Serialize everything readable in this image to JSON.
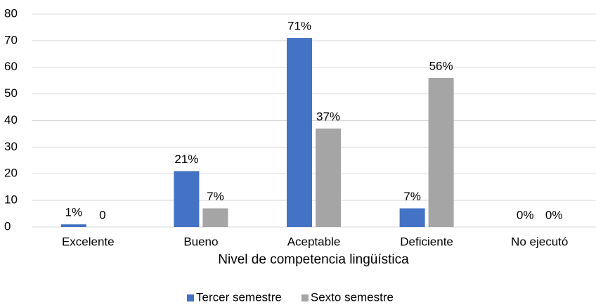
{
  "chart_data": {
    "type": "bar",
    "x_label": "Nivel de competencia lingüística",
    "categories": [
      "Excelente",
      "Bueno",
      "Aceptable",
      "Deficiente",
      "No ejecutó"
    ],
    "series": [
      {
        "name": "Tercer semestre",
        "color": "#4472c4",
        "values": [
          1,
          21,
          71,
          7,
          0
        ],
        "value_labels": [
          "1%",
          "21%",
          "71%",
          "7%",
          "0%"
        ]
      },
      {
        "name": "Sexto semestre",
        "color": "#a5a5a5",
        "values": [
          0,
          7,
          37,
          56,
          0
        ],
        "value_labels": [
          "0",
          "7%",
          "37%",
          "56%",
          "0%"
        ]
      }
    ],
    "ylim": [
      0,
      80
    ],
    "yticks": [
      0,
      10,
      20,
      30,
      40,
      50,
      60,
      70,
      80
    ],
    "grid": true,
    "legend": "bottom"
  }
}
